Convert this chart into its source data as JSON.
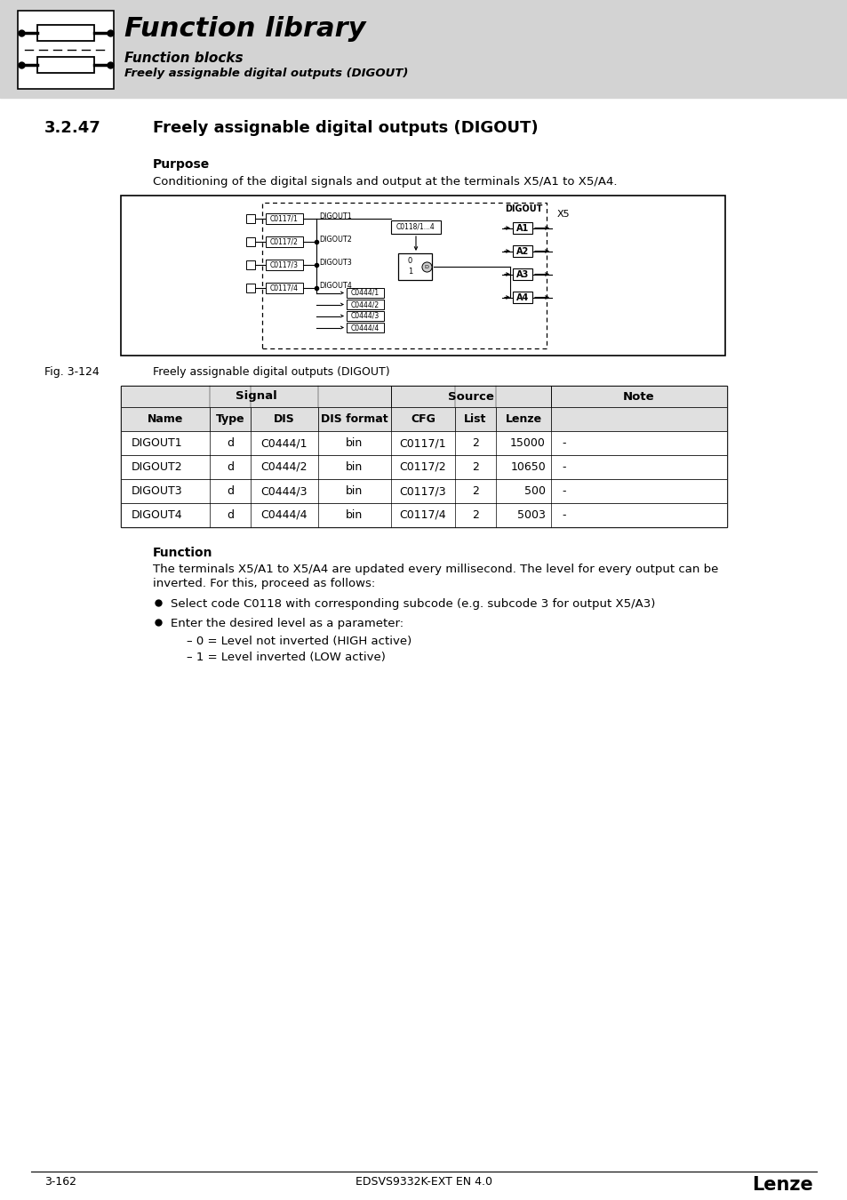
{
  "page_bg": "#ffffff",
  "header_bg": "#d3d3d3",
  "header_title": "Function library",
  "header_sub1": "Function blocks",
  "header_sub2": "Freely assignable digital outputs (DIGOUT)",
  "section_number": "3.2.47",
  "section_title": "Freely assignable digital outputs (DIGOUT)",
  "purpose_label": "Purpose",
  "purpose_text": "Conditioning of the digital signals and output at the terminals X5/A1 to X5/A4.",
  "fig_label": "Fig. 3-124",
  "fig_caption": "Freely assignable digital outputs (DIGOUT)",
  "table_rows": [
    [
      "DIGOUT1",
      "d",
      "C0444/1",
      "bin",
      "C0117/1",
      "2",
      "15000",
      "-"
    ],
    [
      "DIGOUT2",
      "d",
      "C0444/2",
      "bin",
      "C0117/2",
      "2",
      "10650",
      "-"
    ],
    [
      "DIGOUT3",
      "d",
      "C0444/3",
      "bin",
      "C0117/3",
      "2",
      "500",
      "-"
    ],
    [
      "DIGOUT4",
      "d",
      "C0444/4",
      "bin",
      "C0117/4",
      "2",
      "5003",
      "-"
    ]
  ],
  "function_label": "Function",
  "function_text1": "The terminals X5/A1 to X5/A4 are updated every millisecond. The level for every output can be",
  "function_text2": "inverted. For this, proceed as follows:",
  "bullet1": "Select code C0118 with corresponding subcode (e.g. subcode 3 for output X5/A3)",
  "bullet2": "Enter the desired level as a parameter:",
  "sub_bullet1": "– 0 = Level not inverted (HIGH active)",
  "sub_bullet2": "– 1 = Level inverted (LOW active)",
  "footer_left": "3-162",
  "footer_center": "EDSVS9332K-EXT EN 4.0",
  "footer_right": "Lenze"
}
